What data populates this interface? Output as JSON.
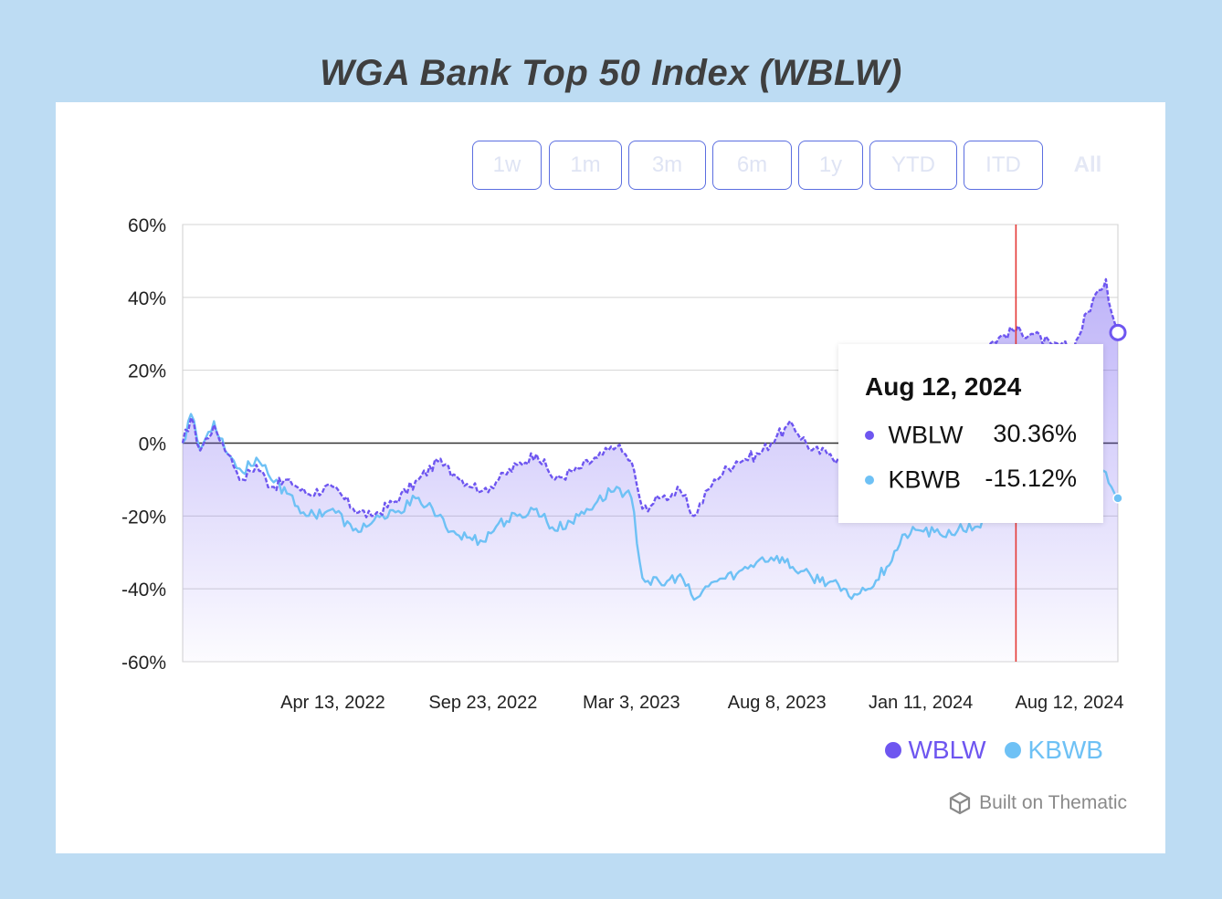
{
  "page": {
    "title": "WGA Bank Top 50 Index (WBLW)"
  },
  "range_buttons": [
    {
      "label": "1w"
    },
    {
      "label": "1m"
    },
    {
      "label": "3m"
    },
    {
      "label": "6m"
    },
    {
      "label": "1y"
    },
    {
      "label": "YTD"
    },
    {
      "label": "ITD"
    },
    {
      "label": "All"
    }
  ],
  "tooltip": {
    "date": "Aug 12, 2024",
    "rows": [
      {
        "name": "WBLW",
        "value": "30.36%"
      },
      {
        "name": "KBWB",
        "value": "-15.12%"
      }
    ]
  },
  "legend": [
    {
      "name": "WBLW",
      "color": "#6e56f0"
    },
    {
      "name": "KBWB",
      "color": "#6ec1f5"
    }
  ],
  "credit": {
    "text": "Built on Thematic",
    "icon": "thematic-logo-icon"
  },
  "colors": {
    "wblw": "#6e56f0",
    "kbwb": "#6ec1f5",
    "crosshair": "#e53935",
    "zero_line": "#333333"
  },
  "chart_data": {
    "type": "line",
    "x_tick_labels": [
      "Apr 13, 2022",
      "Sep 23, 2022",
      "Mar 3, 2023",
      "Aug 8, 2023",
      "Jan 11, 2024",
      "Aug 12, 2024"
    ],
    "y_tick_labels": [
      "60%",
      "40%",
      "20%",
      "0%",
      "-20%",
      "-40%",
      "-60%"
    ],
    "ylim": [
      -60,
      60
    ],
    "grid": true,
    "legend_position": "bottom-right",
    "crosshair_date": "Aug 12, 2024",
    "series": [
      {
        "name": "WBLW",
        "points": [
          [
            "2021-11-01",
            0
          ],
          [
            "2021-11-10",
            7
          ],
          [
            "2021-11-20",
            -2
          ],
          [
            "2021-12-05",
            5
          ],
          [
            "2021-12-20",
            -3
          ],
          [
            "2022-01-05",
            -10
          ],
          [
            "2022-01-20",
            -6
          ],
          [
            "2022-02-05",
            -12
          ],
          [
            "2022-02-25",
            -10
          ],
          [
            "2022-03-15",
            -14
          ],
          [
            "2022-04-13",
            -12
          ],
          [
            "2022-05-05",
            -18
          ],
          [
            "2022-05-25",
            -20
          ],
          [
            "2022-06-20",
            -16
          ],
          [
            "2022-07-15",
            -10
          ],
          [
            "2022-08-05",
            -5
          ],
          [
            "2022-08-25",
            -9
          ],
          [
            "2022-09-23",
            -13
          ],
          [
            "2022-10-10",
            -10
          ],
          [
            "2022-10-30",
            -6
          ],
          [
            "2022-11-20",
            -3
          ],
          [
            "2022-12-10",
            -10
          ],
          [
            "2023-01-05",
            -7
          ],
          [
            "2023-01-25",
            -4
          ],
          [
            "2023-02-15",
            -1
          ],
          [
            "2023-03-03",
            -5
          ],
          [
            "2023-03-15",
            -18
          ],
          [
            "2023-04-05",
            -15
          ],
          [
            "2023-04-25",
            -13
          ],
          [
            "2023-05-10",
            -20
          ],
          [
            "2023-06-01",
            -10
          ],
          [
            "2023-06-25",
            -5
          ],
          [
            "2023-07-20",
            -3
          ],
          [
            "2023-08-08",
            2
          ],
          [
            "2023-08-25",
            5
          ],
          [
            "2023-09-15",
            -2
          ],
          [
            "2023-10-05",
            -3
          ],
          [
            "2023-10-25",
            -7
          ],
          [
            "2023-11-15",
            -9
          ],
          [
            "2023-12-05",
            -3
          ],
          [
            "2023-12-25",
            0
          ],
          [
            "2024-01-11",
            -2
          ],
          [
            "2024-02-01",
            10
          ],
          [
            "2024-02-20",
            20
          ],
          [
            "2024-03-10",
            25
          ],
          [
            "2024-03-30",
            28
          ],
          [
            "2024-04-20",
            31
          ],
          [
            "2024-05-10",
            30
          ],
          [
            "2024-06-01",
            27
          ],
          [
            "2024-06-25",
            26
          ],
          [
            "2024-07-10",
            36
          ],
          [
            "2024-07-22",
            42
          ],
          [
            "2024-07-30",
            45
          ],
          [
            "2024-08-05",
            36
          ],
          [
            "2024-08-12",
            30.36
          ]
        ]
      },
      {
        "name": "KBWB",
        "points": [
          [
            "2021-11-01",
            0
          ],
          [
            "2021-11-10",
            8
          ],
          [
            "2021-11-20",
            -2
          ],
          [
            "2021-12-05",
            6
          ],
          [
            "2021-12-20",
            -3
          ],
          [
            "2022-01-05",
            -8
          ],
          [
            "2022-01-20",
            -4
          ],
          [
            "2022-02-05",
            -10
          ],
          [
            "2022-02-25",
            -14
          ],
          [
            "2022-03-15",
            -20
          ],
          [
            "2022-04-13",
            -18
          ],
          [
            "2022-05-05",
            -24
          ],
          [
            "2022-05-25",
            -22
          ],
          [
            "2022-06-20",
            -19
          ],
          [
            "2022-07-15",
            -15
          ],
          [
            "2022-08-05",
            -20
          ],
          [
            "2022-08-25",
            -25
          ],
          [
            "2022-09-23",
            -27
          ],
          [
            "2022-10-10",
            -22
          ],
          [
            "2022-10-30",
            -20
          ],
          [
            "2022-11-20",
            -18
          ],
          [
            "2022-12-10",
            -24
          ],
          [
            "2023-01-05",
            -20
          ],
          [
            "2023-01-25",
            -16
          ],
          [
            "2023-02-15",
            -12
          ],
          [
            "2023-03-03",
            -15
          ],
          [
            "2023-03-15",
            -37
          ],
          [
            "2023-04-05",
            -39
          ],
          [
            "2023-04-25",
            -36
          ],
          [
            "2023-05-10",
            -43
          ],
          [
            "2023-06-01",
            -38
          ],
          [
            "2023-06-25",
            -36
          ],
          [
            "2023-07-20",
            -32
          ],
          [
            "2023-08-08",
            -31
          ],
          [
            "2023-08-25",
            -34
          ],
          [
            "2023-09-15",
            -37
          ],
          [
            "2023-10-05",
            -38
          ],
          [
            "2023-10-25",
            -42
          ],
          [
            "2023-11-15",
            -40
          ],
          [
            "2023-12-05",
            -34
          ],
          [
            "2023-12-25",
            -25
          ],
          [
            "2024-01-11",
            -24
          ],
          [
            "2024-02-01",
            -25
          ],
          [
            "2024-02-20",
            -24
          ],
          [
            "2024-03-10",
            -23
          ],
          [
            "2024-03-30",
            -20
          ],
          [
            "2024-04-20",
            -20
          ],
          [
            "2024-05-10",
            -18
          ],
          [
            "2024-06-01",
            -15
          ],
          [
            "2024-06-25",
            -15
          ],
          [
            "2024-07-10",
            -12
          ],
          [
            "2024-07-22",
            -9
          ],
          [
            "2024-07-30",
            -8
          ],
          [
            "2024-08-05",
            -12
          ],
          [
            "2024-08-12",
            -15.12
          ]
        ]
      }
    ]
  }
}
